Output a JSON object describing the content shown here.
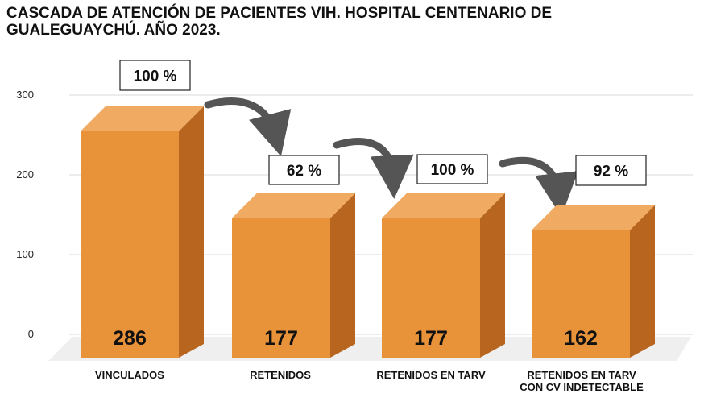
{
  "title": "CASCADA DE ATENCIÓN DE PACIENTES VIH. HOSPITAL CENTENARIO DE GUALEGUAYCHÚ. AÑO 2023.",
  "colors": {
    "bar_front": "#E8923A",
    "bar_top": "#F0AA62",
    "bar_side": "#B8661F",
    "grid": "#D9D9D9",
    "arrow": "#555555"
  },
  "chart_data": {
    "type": "bar",
    "title": "CASCADA DE ATENCIÓN DE PACIENTES VIH. HOSPITAL CENTENARIO DE GUALEGUAYCHÚ. AÑO 2023.",
    "categories": [
      "VINCULADOS",
      "RETENIDOS",
      "RETENIDOS EN TARV",
      "RETENIDOS EN TARV CON CV INDETECTABLE"
    ],
    "category_lines": [
      [
        "VINCULADOS"
      ],
      [
        "RETENIDOS"
      ],
      [
        "RETENIDOS EN TARV"
      ],
      [
        "RETENIDOS EN TARV",
        "CON CV INDETECTABLE"
      ]
    ],
    "values": [
      286,
      177,
      177,
      162
    ],
    "value_labels": [
      "286",
      "177",
      "177",
      "162"
    ],
    "percent_labels": [
      "100 %",
      "62 %",
      "100 %",
      "92 %"
    ],
    "y_ticks": [
      0,
      100,
      200,
      300
    ],
    "ylim": [
      0,
      300
    ],
    "xlabel": "",
    "ylabel": "",
    "grid": true,
    "style": "3d-column-cascade"
  }
}
